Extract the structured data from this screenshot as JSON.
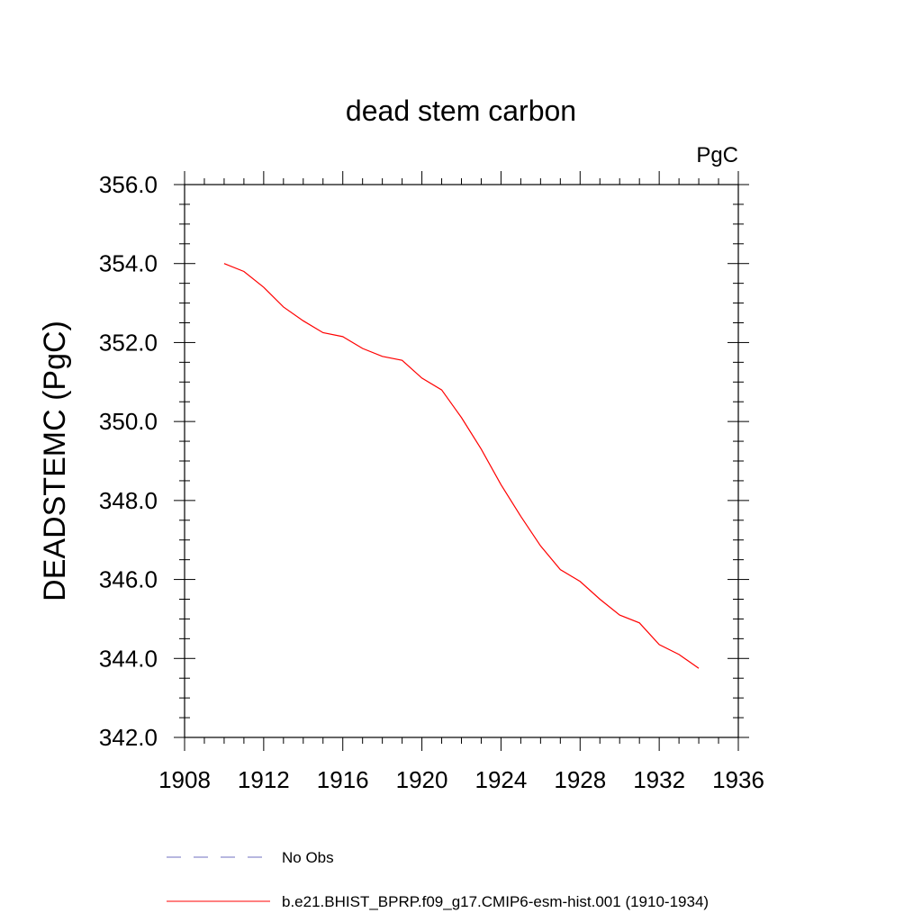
{
  "chart_data": {
    "type": "line",
    "title": "dead stem carbon",
    "units_label": "PgC",
    "xlabel": "",
    "ylabel": "DEADSTEMC  (PgC)",
    "xlim": [
      1908,
      1936
    ],
    "ylim": [
      342.0,
      356.0
    ],
    "x_ticks": [
      1908,
      1912,
      1916,
      1920,
      1924,
      1928,
      1932,
      1936
    ],
    "x_tick_labels": [
      "1908",
      "1912",
      "1916",
      "1920",
      "1924",
      "1928",
      "1932",
      "1936"
    ],
    "y_ticks": [
      342.0,
      344.0,
      346.0,
      348.0,
      350.0,
      352.0,
      354.0,
      356.0
    ],
    "y_tick_labels": [
      "342.0",
      "344.0",
      "346.0",
      "348.0",
      "350.0",
      "352.0",
      "354.0",
      "356.0"
    ],
    "grid": false,
    "legend_position": "bottom",
    "series": [
      {
        "name": "b.e21.BHIST_BPRP.f09_g17.CMIP6-esm-hist.001 (1910-1934)",
        "color": "#ff0000",
        "dash": "solid",
        "x": [
          1910,
          1911,
          1912,
          1913,
          1914,
          1915,
          1916,
          1917,
          1918,
          1919,
          1920,
          1921,
          1922,
          1923,
          1924,
          1925,
          1926,
          1927,
          1928,
          1929,
          1930,
          1931,
          1932,
          1933,
          1934
        ],
        "values": [
          354.0,
          353.8,
          353.4,
          352.9,
          352.55,
          352.25,
          352.15,
          351.85,
          351.65,
          351.55,
          351.1,
          350.8,
          350.1,
          349.3,
          348.4,
          347.6,
          346.85,
          346.25,
          345.95,
          345.5,
          345.1,
          344.9,
          344.35,
          344.1,
          343.75
        ]
      }
    ],
    "legend": [
      {
        "label": "No Obs",
        "color": "#6f6fbf",
        "dash": "dashed"
      },
      {
        "label": "b.e21.BHIST_BPRP.f09_g17.CMIP6-esm-hist.001 (1910-1934)",
        "color": "#ff0000",
        "dash": "solid"
      }
    ]
  }
}
